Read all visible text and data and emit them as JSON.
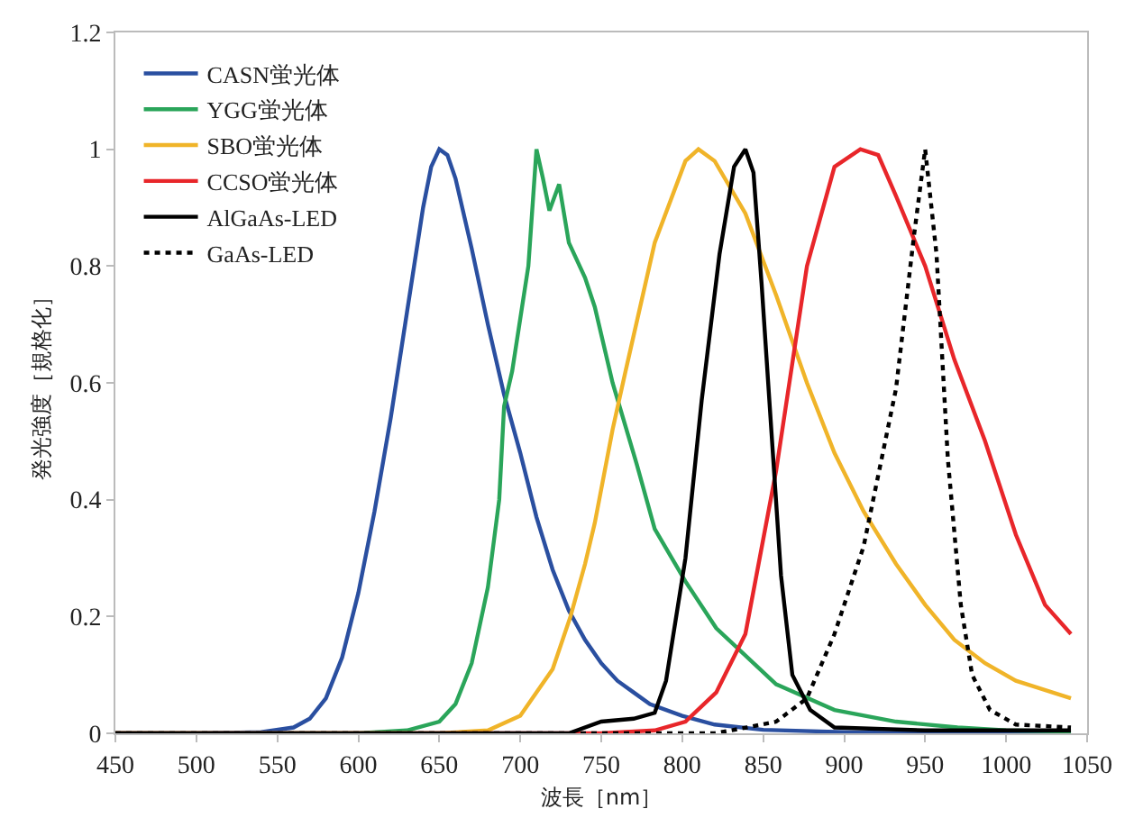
{
  "chart_data": {
    "type": "line",
    "xlabel": "波長［nm］",
    "ylabel": "発光強度［規格化］",
    "xlim": [
      450,
      1050
    ],
    "xticks": [
      450,
      500,
      550,
      600,
      650,
      700,
      750,
      800,
      850,
      900,
      950,
      1000,
      1050
    ],
    "ylim": [
      0,
      1.2
    ],
    "yticks": [
      0,
      0.2,
      0.4,
      0.6,
      0.8,
      1,
      1.2
    ],
    "grid": false,
    "legend": "top left",
    "marker": "none",
    "series": [
      {
        "name": "CASN蛍光体",
        "color": "#2a4fa0",
        "line_style": "solid",
        "x": [
          450,
          500,
          540,
          560,
          570,
          580,
          590,
          600,
          610,
          620,
          630,
          640,
          645,
          650,
          655,
          660,
          670,
          680,
          690,
          700,
          710,
          720,
          730,
          740,
          750,
          760,
          770,
          780,
          800,
          820,
          850,
          900,
          950,
          1040
        ],
        "values": [
          0,
          0,
          0.002,
          0.01,
          0.025,
          0.06,
          0.13,
          0.24,
          0.38,
          0.54,
          0.72,
          0.9,
          0.97,
          1,
          0.99,
          0.95,
          0.83,
          0.7,
          0.58,
          0.48,
          0.37,
          0.28,
          0.21,
          0.16,
          0.12,
          0.09,
          0.07,
          0.05,
          0.03,
          0.015,
          0.006,
          0.002,
          0,
          0
        ]
      },
      {
        "name": "YGG蛍光体",
        "color": "#2aa55a",
        "line_style": "solid",
        "x": [
          450,
          600,
          630,
          650,
          660,
          670,
          680,
          687,
          690,
          695,
          700,
          705,
          710,
          714,
          718,
          724,
          730,
          740,
          746,
          757,
          772,
          783,
          802,
          821,
          858,
          894,
          932,
          970,
          1000,
          1040
        ],
        "values": [
          0,
          0,
          0.005,
          0.02,
          0.05,
          0.12,
          0.25,
          0.4,
          0.56,
          0.62,
          0.71,
          0.8,
          1,
          0.95,
          0.895,
          0.94,
          0.84,
          0.78,
          0.73,
          0.6,
          0.46,
          0.35,
          0.26,
          0.18,
          0.084,
          0.04,
          0.02,
          0.01,
          0.005,
          0.003
        ]
      },
      {
        "name": "SBO蛍光体",
        "color": "#f0b429",
        "line_style": "solid",
        "x": [
          450,
          650,
          680,
          700,
          720,
          731,
          740,
          746,
          757,
          765,
          783,
          802,
          810,
          820,
          839,
          858,
          877,
          894,
          912,
          932,
          950,
          968,
          987,
          1006,
          1040
        ],
        "values": [
          0,
          0,
          0.005,
          0.03,
          0.11,
          0.2,
          0.29,
          0.36,
          0.52,
          0.62,
          0.84,
          0.98,
          1,
          0.98,
          0.89,
          0.75,
          0.6,
          0.48,
          0.38,
          0.29,
          0.22,
          0.16,
          0.12,
          0.09,
          0.06
        ]
      },
      {
        "name": "CCSO蛍光体",
        "color": "#e8262a",
        "line_style": "solid",
        "x": [
          450,
          750,
          783,
          802,
          821,
          839,
          858,
          877,
          894,
          910,
          921,
          932,
          950,
          968,
          987,
          1006,
          1024,
          1040
        ],
        "values": [
          0,
          0,
          0.005,
          0.02,
          0.07,
          0.17,
          0.45,
          0.8,
          0.97,
          1,
          0.99,
          0.92,
          0.8,
          0.64,
          0.5,
          0.34,
          0.22,
          0.17
        ]
      },
      {
        "name": "AlGaAs-LED",
        "color": "#000000",
        "line_style": "solid",
        "x": [
          450,
          730,
          750,
          770,
          783,
          790,
          802,
          812,
          823,
          832,
          839,
          844,
          849,
          855,
          861,
          868,
          879,
          894,
          950,
          1040
        ],
        "values": [
          0,
          0,
          0.02,
          0.025,
          0.035,
          0.09,
          0.3,
          0.57,
          0.82,
          0.97,
          1,
          0.96,
          0.77,
          0.52,
          0.27,
          0.1,
          0.04,
          0.01,
          0.005,
          0.005
        ]
      },
      {
        "name": "GaAs-LED",
        "color": "#000000",
        "line_style": "dotted",
        "x": [
          450,
          820,
          840,
          858,
          877,
          894,
          912,
          932,
          943,
          950,
          957,
          964,
          972,
          979,
          990,
          1006,
          1040
        ],
        "values": [
          0,
          0,
          0.01,
          0.02,
          0.06,
          0.17,
          0.32,
          0.59,
          0.85,
          1,
          0.82,
          0.47,
          0.22,
          0.1,
          0.04,
          0.015,
          0.01
        ]
      }
    ]
  }
}
